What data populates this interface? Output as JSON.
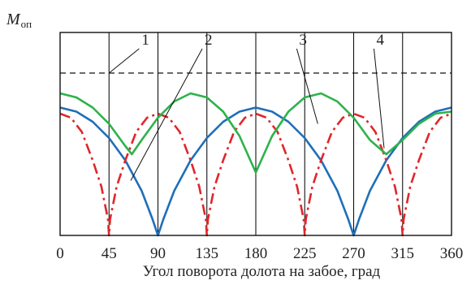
{
  "chart_data": {
    "type": "line",
    "ylabel": "M",
    "ylabel_sub": "оп",
    "xlabel": "Угол поворота долота на забое, град",
    "xlim": [
      0,
      360
    ],
    "ylim": [
      0,
      1
    ],
    "xticks": [
      0,
      45,
      90,
      135,
      180,
      225,
      270,
      315,
      360
    ],
    "xtick_labels": [
      "0",
      "45",
      "90",
      "135",
      "180",
      "225",
      "270",
      "315",
      "360"
    ],
    "grid": {
      "vertical": true,
      "horizontal": false
    },
    "series": [
      {
        "id": "1",
        "color": "#111111",
        "dash": "dashed",
        "x": [
          0,
          360
        ],
        "y": [
          0.8,
          0.8
        ]
      },
      {
        "id": "2",
        "color": "#1f6fb8",
        "dash": "solid",
        "x": [
          0,
          15,
          30,
          45,
          60,
          75,
          85,
          90,
          95,
          105,
          120,
          135,
          150,
          165,
          180,
          195,
          210,
          225,
          240,
          255,
          265,
          270,
          275,
          285,
          300,
          315,
          330,
          345,
          360
        ],
        "y": [
          0.63,
          0.61,
          0.56,
          0.48,
          0.37,
          0.22,
          0.08,
          0.0,
          0.08,
          0.22,
          0.37,
          0.48,
          0.56,
          0.61,
          0.63,
          0.61,
          0.56,
          0.48,
          0.37,
          0.22,
          0.08,
          0.0,
          0.08,
          0.22,
          0.37,
          0.48,
          0.56,
          0.61,
          0.63
        ]
      },
      {
        "id": "3",
        "color": "#2db24b",
        "dash": "solid",
        "x": [
          0,
          15,
          30,
          45,
          60,
          66,
          75,
          90,
          105,
          120,
          135,
          150,
          165,
          180,
          195,
          210,
          225,
          240,
          255,
          270,
          285,
          300,
          315,
          330,
          345,
          360
        ],
        "y": [
          0.7,
          0.68,
          0.63,
          0.55,
          0.44,
          0.4,
          0.47,
          0.58,
          0.66,
          0.7,
          0.68,
          0.61,
          0.49,
          0.31,
          0.49,
          0.61,
          0.68,
          0.7,
          0.66,
          0.58,
          0.47,
          0.4,
          0.47,
          0.55,
          0.6,
          0.61
        ]
      },
      {
        "id": "4",
        "color": "#e0262b",
        "dash": "dashdot",
        "x": [
          0,
          10,
          20,
          30,
          38,
          44,
          45,
          46,
          52,
          60,
          70,
          80,
          90,
          100,
          110,
          120,
          128,
          134,
          135,
          136,
          142,
          150,
          160,
          170,
          180,
          190,
          200,
          210,
          218,
          224,
          225,
          226,
          232,
          240,
          250,
          260,
          270,
          280,
          290,
          300,
          308,
          314,
          315,
          316,
          322,
          330,
          340,
          350,
          360
        ],
        "y": [
          0.6,
          0.58,
          0.51,
          0.37,
          0.24,
          0.08,
          0.0,
          0.08,
          0.24,
          0.37,
          0.51,
          0.58,
          0.6,
          0.58,
          0.51,
          0.37,
          0.24,
          0.08,
          0.0,
          0.08,
          0.24,
          0.37,
          0.51,
          0.58,
          0.6,
          0.58,
          0.51,
          0.37,
          0.24,
          0.08,
          0.0,
          0.08,
          0.24,
          0.37,
          0.51,
          0.58,
          0.6,
          0.58,
          0.51,
          0.37,
          0.24,
          0.08,
          0.0,
          0.08,
          0.24,
          0.37,
          0.51,
          0.58,
          0.6
        ]
      }
    ],
    "callouts": [
      {
        "label": "1",
        "point": [
          45,
          0.8
        ]
      },
      {
        "label": "2",
        "point": [
          65,
          0.27
        ]
      },
      {
        "label": "3",
        "point": [
          237,
          0.55
        ]
      },
      {
        "label": "4",
        "point": [
          298,
          0.43
        ]
      }
    ]
  }
}
